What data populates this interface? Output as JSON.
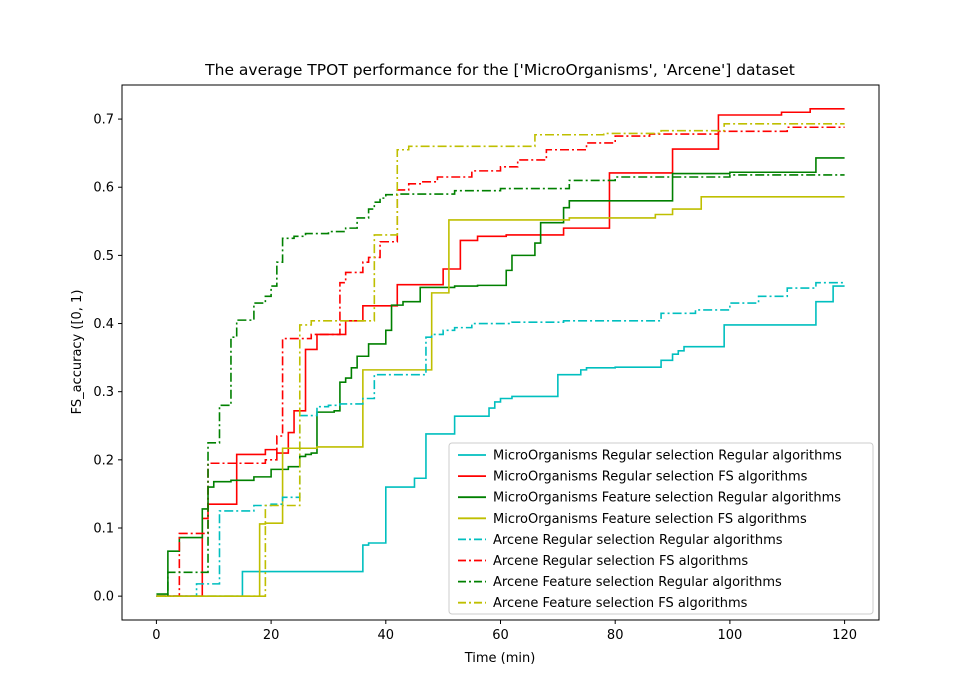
{
  "chart_data": {
    "type": "line",
    "title": "The average TPOT performance for the ['MicroOrganisms', 'Arcene'] dataset",
    "xlabel": "Time (min)",
    "ylabel": "FS_accuracy ([0, 1)",
    "xlim": [
      -6,
      126
    ],
    "ylim": [
      -0.035,
      0.75
    ],
    "xticks": [
      0,
      20,
      40,
      60,
      80,
      100,
      120
    ],
    "yticks": [
      0.0,
      0.1,
      0.2,
      0.3,
      0.4,
      0.5,
      0.6,
      0.7
    ],
    "xtick_labels": [
      "0",
      "20",
      "40",
      "60",
      "80",
      "100",
      "120"
    ],
    "ytick_labels": [
      "0.0",
      "0.1",
      "0.2",
      "0.3",
      "0.4",
      "0.5",
      "0.6",
      "0.7"
    ],
    "legend_position": "lower-right",
    "drawstyle": "steps-post",
    "series": [
      {
        "name": "MicroOrganisms Regular selection Regular algorithms",
        "color": "#00bfbf",
        "linestyle": "solid",
        "x": [
          0,
          15,
          36,
          37,
          40,
          45,
          47,
          52,
          58,
          59,
          60,
          62,
          70,
          74,
          75,
          80,
          88,
          90,
          91,
          92,
          99,
          103,
          110,
          115,
          118,
          120
        ],
        "y": [
          0.0,
          0.036,
          0.075,
          0.078,
          0.16,
          0.173,
          0.238,
          0.264,
          0.276,
          0.285,
          0.29,
          0.293,
          0.325,
          0.332,
          0.335,
          0.336,
          0.346,
          0.355,
          0.36,
          0.366,
          0.398,
          0.398,
          0.398,
          0.432,
          0.455,
          0.455
        ]
      },
      {
        "name": "MicroOrganisms Regular selection FS algorithms",
        "color": "#ff0000",
        "linestyle": "solid",
        "x": [
          0,
          8,
          9,
          14,
          19,
          21,
          23,
          24,
          26,
          28,
          33,
          36,
          42,
          44,
          48,
          50,
          53,
          56,
          61,
          66,
          71,
          79,
          90,
          98,
          105,
          109,
          114,
          120
        ],
        "y": [
          0.0,
          0.114,
          0.135,
          0.208,
          0.215,
          0.21,
          0.24,
          0.272,
          0.362,
          0.384,
          0.404,
          0.426,
          0.457,
          0.457,
          0.457,
          0.48,
          0.522,
          0.528,
          0.53,
          0.53,
          0.54,
          0.621,
          0.656,
          0.706,
          0.706,
          0.71,
          0.715,
          0.715
        ]
      },
      {
        "name": "MicroOrganisms Feature selection Regular algorithms",
        "color": "#008000",
        "linestyle": "solid",
        "x": [
          0,
          2,
          4,
          8,
          9,
          10,
          13,
          17,
          20,
          23,
          25,
          26,
          27,
          28,
          31,
          32,
          33,
          34,
          35,
          37,
          40,
          41,
          43,
          46,
          52,
          56,
          61,
          62,
          66,
          67,
          71,
          72,
          77,
          89,
          90,
          100,
          115,
          120
        ],
        "y": [
          0.003,
          0.066,
          0.086,
          0.128,
          0.16,
          0.168,
          0.17,
          0.175,
          0.186,
          0.19,
          0.205,
          0.208,
          0.21,
          0.27,
          0.272,
          0.314,
          0.32,
          0.335,
          0.352,
          0.37,
          0.39,
          0.427,
          0.432,
          0.453,
          0.455,
          0.456,
          0.478,
          0.5,
          0.518,
          0.548,
          0.57,
          0.58,
          0.58,
          0.58,
          0.62,
          0.622,
          0.643,
          0.643
        ]
      },
      {
        "name": "MicroOrganisms Feature selection FS algorithms",
        "color": "#bfbf00",
        "linestyle": "solid",
        "x": [
          0,
          18,
          19,
          22,
          28,
          36,
          41,
          48,
          51,
          57,
          62,
          69,
          72,
          75,
          80,
          87,
          90,
          95,
          120
        ],
        "y": [
          0.0,
          0.106,
          0.107,
          0.217,
          0.219,
          0.332,
          0.332,
          0.445,
          0.552,
          0.552,
          0.552,
          0.552,
          0.555,
          0.555,
          0.555,
          0.56,
          0.568,
          0.586,
          0.586
        ]
      },
      {
        "name": "Arcene Regular selection Regular algorithms",
        "color": "#00bfbf",
        "linestyle": "dashdot",
        "x": [
          0,
          7,
          11,
          17,
          20,
          22,
          25,
          28,
          30,
          32,
          36,
          38,
          47,
          48,
          50,
          52,
          55,
          62,
          71,
          88,
          94,
          100,
          105,
          110,
          115,
          120
        ],
        "y": [
          0.0,
          0.018,
          0.125,
          0.133,
          0.135,
          0.145,
          0.265,
          0.278,
          0.28,
          0.282,
          0.29,
          0.325,
          0.38,
          0.384,
          0.39,
          0.394,
          0.4,
          0.402,
          0.404,
          0.415,
          0.42,
          0.43,
          0.44,
          0.452,
          0.46,
          0.46
        ]
      },
      {
        "name": "Arcene Regular selection FS algorithms",
        "color": "#ff0000",
        "linestyle": "dashdot",
        "x": [
          0,
          4,
          9,
          19,
          21,
          22,
          27,
          32,
          33,
          36,
          37,
          39,
          42,
          44,
          46,
          49,
          55,
          60,
          63,
          68,
          75,
          80,
          86,
          98,
          110,
          120
        ],
        "y": [
          0.0,
          0.092,
          0.195,
          0.2,
          0.235,
          0.378,
          0.384,
          0.46,
          0.475,
          0.49,
          0.497,
          0.52,
          0.596,
          0.605,
          0.608,
          0.615,
          0.624,
          0.63,
          0.64,
          0.655,
          0.665,
          0.675,
          0.678,
          0.682,
          0.688,
          0.688
        ]
      },
      {
        "name": "Arcene Feature selection Regular algorithms",
        "color": "#008000",
        "linestyle": "dashdot",
        "x": [
          0,
          2,
          9,
          11,
          13,
          14,
          17,
          19,
          20,
          21,
          22,
          24,
          26,
          30,
          33,
          35,
          37,
          38,
          39,
          40,
          42,
          45,
          52,
          60,
          72,
          80,
          100,
          120
        ],
        "y": [
          0.0,
          0.035,
          0.225,
          0.28,
          0.38,
          0.405,
          0.43,
          0.44,
          0.455,
          0.49,
          0.525,
          0.528,
          0.532,
          0.535,
          0.54,
          0.555,
          0.568,
          0.578,
          0.584,
          0.589,
          0.59,
          0.59,
          0.595,
          0.598,
          0.61,
          0.615,
          0.618,
          0.618
        ]
      },
      {
        "name": "Arcene Feature selection FS algorithms",
        "color": "#bfbf00",
        "linestyle": "dashdot",
        "x": [
          0,
          19,
          24,
          25,
          27,
          29,
          30,
          32,
          36,
          38,
          39,
          41,
          42,
          44,
          60,
          66,
          78,
          88,
          99,
          120
        ],
        "y": [
          0.0,
          0.133,
          0.133,
          0.398,
          0.404,
          0.404,
          0.404,
          0.404,
          0.404,
          0.53,
          0.53,
          0.53,
          0.655,
          0.66,
          0.66,
          0.677,
          0.679,
          0.683,
          0.693,
          0.693
        ]
      }
    ]
  }
}
